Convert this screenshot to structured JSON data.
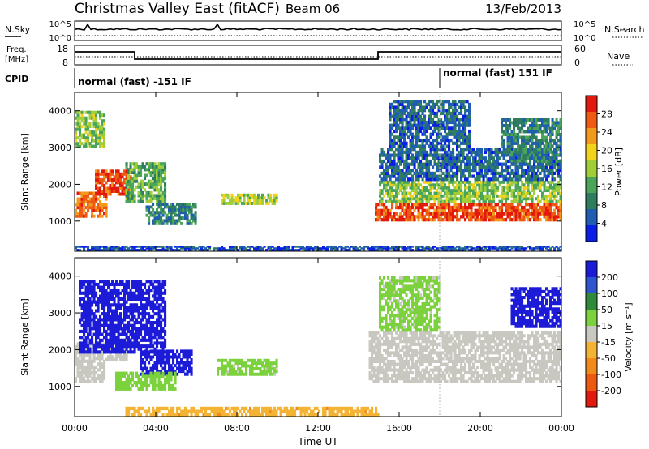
{
  "header": {
    "title": "Christmas Valley East (fitACF)",
    "beam": "Beam 06",
    "date": "13/Feb/2013"
  },
  "noise_panel": {
    "left_label": "N.Sky",
    "right_label": "N.Search",
    "left_ticks": [
      "10^5",
      "10^0"
    ],
    "right_ticks": [
      "10^5",
      "10^0"
    ]
  },
  "freq_panel": {
    "left_label_1": "Freq.",
    "left_label_2": "[MHz]",
    "right_label": "Nave",
    "left_ticks": [
      "18",
      "8"
    ],
    "right_ticks": [
      "60",
      "0"
    ]
  },
  "cpid_panel": {
    "label": "CPID",
    "segments": [
      {
        "text": "normal (fast) -151 IF",
        "start_hour": 0,
        "end_hour": 18
      },
      {
        "text": "normal (fast) 151 IF",
        "start_hour": 18,
        "end_hour": 24
      }
    ]
  },
  "colors": {
    "power_scale": [
      "#0a1ee6",
      "#1f5db2",
      "#2f7d5e",
      "#4aa55a",
      "#9fce3a",
      "#f3d21e",
      "#f39a1c",
      "#ee5a12",
      "#e21a0e"
    ],
    "velocity_scale": [
      "#1b1bd8",
      "#2e55d0",
      "#2f8a3a",
      "#7bd23c",
      "#c8c8c0",
      "#f5b335",
      "#f08a1a",
      "#ec5a10",
      "#e21a0e"
    ]
  },
  "chart_data": [
    {
      "type": "heatmap",
      "name": "power",
      "xlabel": "Time UT",
      "ylabel": "Slant Range [km]",
      "xlim": [
        0,
        24
      ],
      "ylim": [
        180,
        4500
      ],
      "x_ticks": [
        "00:00",
        "04:00",
        "08:00",
        "12:00",
        "16:00",
        "20:00",
        "00:00"
      ],
      "y_ticks": [
        1000,
        2000,
        3000,
        4000
      ],
      "colorbar": {
        "label": "Power [dB]",
        "ticks": [
          4,
          8,
          12,
          16,
          20,
          24,
          28
        ],
        "range": [
          0,
          30
        ]
      },
      "echo_regions": [
        {
          "t0": 0.0,
          "t1": 1.6,
          "r0": 1100,
          "r1": 1800,
          "value": 24
        },
        {
          "t0": 1.0,
          "t1": 2.8,
          "r0": 1700,
          "r1": 2400,
          "value": 26
        },
        {
          "t0": 0.0,
          "t1": 1.5,
          "r0": 3000,
          "r1": 4000,
          "value": 14
        },
        {
          "t0": 2.5,
          "t1": 4.5,
          "r0": 1500,
          "r1": 2600,
          "value": 12
        },
        {
          "t0": 3.5,
          "t1": 6.0,
          "r0": 900,
          "r1": 1500,
          "value": 8
        },
        {
          "t0": 7.2,
          "t1": 10.0,
          "r0": 1450,
          "r1": 1750,
          "value": 16
        },
        {
          "t0": 14.8,
          "t1": 24.0,
          "r0": 1000,
          "r1": 1500,
          "value": 26
        },
        {
          "t0": 15.0,
          "t1": 24.0,
          "r0": 1500,
          "r1": 2100,
          "value": 14
        },
        {
          "t0": 15.0,
          "t1": 24.0,
          "r0": 2100,
          "r1": 3000,
          "value": 6
        },
        {
          "t0": 15.5,
          "t1": 19.5,
          "r0": 3000,
          "r1": 4300,
          "value": 6
        },
        {
          "t0": 21.0,
          "t1": 24.0,
          "r0": 2600,
          "r1": 3800,
          "value": 8
        },
        {
          "t0": 0.0,
          "t1": 24.0,
          "r0": 200,
          "r1": 330,
          "value": 4
        }
      ]
    },
    {
      "type": "heatmap",
      "name": "velocity",
      "xlabel": "Time UT",
      "ylabel": "Slant Range [km]",
      "xlim": [
        0,
        24
      ],
      "ylim": [
        180,
        4500
      ],
      "x_ticks": [
        "00:00",
        "04:00",
        "08:00",
        "12:00",
        "16:00",
        "20:00",
        "00:00"
      ],
      "y_ticks": [
        1000,
        2000,
        3000,
        4000
      ],
      "colorbar": {
        "label": "Velocity [m s⁻¹]",
        "ticks": [
          200,
          100,
          50,
          15,
          -15,
          -50,
          -100,
          -200
        ],
        "range": [
          -250,
          250
        ]
      },
      "echo_regions": [
        {
          "t0": 0.0,
          "t1": 1.5,
          "r0": 1100,
          "r1": 2200,
          "value": 0
        },
        {
          "t0": 1.5,
          "t1": 2.6,
          "r0": 1700,
          "r1": 2300,
          "value": 0
        },
        {
          "t0": 0.2,
          "t1": 4.5,
          "r0": 1900,
          "r1": 3900,
          "value": 220
        },
        {
          "t0": 3.2,
          "t1": 5.8,
          "r0": 1300,
          "r1": 2000,
          "value": 220
        },
        {
          "t0": 2.0,
          "t1": 5.0,
          "r0": 900,
          "r1": 1400,
          "value": 60
        },
        {
          "t0": 7.0,
          "t1": 10.0,
          "r0": 1300,
          "r1": 1750,
          "value": 40
        },
        {
          "t0": 14.5,
          "t1": 24.0,
          "r0": 1100,
          "r1": 2500,
          "value": 0
        },
        {
          "t0": 15.0,
          "t1": 18.0,
          "r0": 2500,
          "r1": 4000,
          "value": 40
        },
        {
          "t0": 21.5,
          "t1": 24.0,
          "r0": 2600,
          "r1": 3700,
          "value": 220
        },
        {
          "t0": 2.5,
          "t1": 15.0,
          "r0": 200,
          "r1": 450,
          "value": -70
        }
      ]
    }
  ]
}
